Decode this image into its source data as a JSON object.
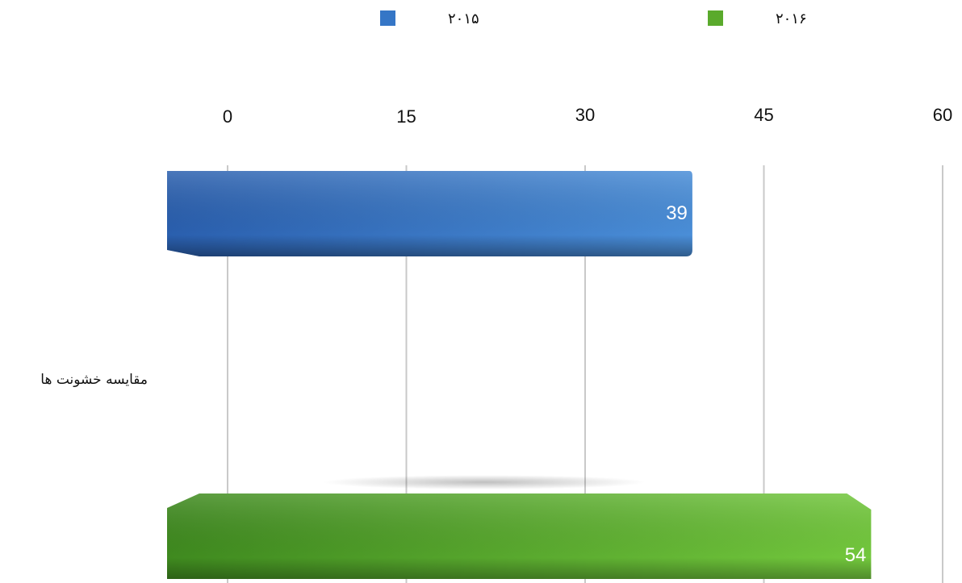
{
  "chart_data": {
    "type": "bar",
    "orientation": "horizontal",
    "categories": [
      "مقایسه خشونت ها"
    ],
    "series": [
      {
        "name": "۲۰۱۵",
        "values": [
          39
        ],
        "color": "#3576c6"
      },
      {
        "name": "۲۰۱۶",
        "values": [
          54
        ],
        "color": "#5aaa2c"
      }
    ],
    "xlim": [
      0,
      60
    ],
    "x_ticks": [
      "0",
      "15",
      "30",
      "45",
      "60"
    ],
    "x_axis_position": "top",
    "grid": true,
    "legend": {
      "placement": "top",
      "entries": [
        "۲۰۱۵",
        "۲۰۱۶"
      ]
    },
    "data_labels": [
      "39",
      "54"
    ]
  }
}
